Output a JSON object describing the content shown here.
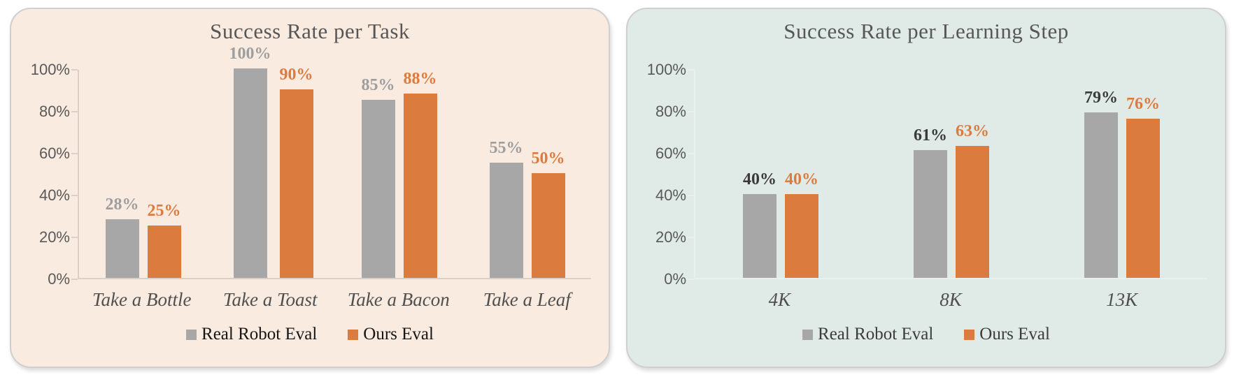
{
  "page": {
    "background": "#FFFFFF"
  },
  "chart_data": [
    {
      "type": "bar",
      "title": "Success Rate per Task",
      "categories": [
        "Take a Bottle",
        "Take a Toast",
        "Take a Bacon",
        "Take a Leaf"
      ],
      "series": [
        {
          "name": "Real Robot Eval",
          "values": [
            28,
            100,
            85,
            55
          ],
          "labels": [
            "28%",
            "100%",
            "85%",
            "55%"
          ],
          "color": "#A7A7A7",
          "label_color": "#9E9E9E"
        },
        {
          "name": "Ours Eval",
          "values": [
            25,
            90,
            88,
            50
          ],
          "labels": [
            "25%",
            "90%",
            "88%",
            "50%"
          ],
          "color": "#DB7B3E",
          "label_color": "#DC7B3E"
        }
      ],
      "xlabel": "",
      "ylabel": "",
      "ylim": [
        0,
        100
      ],
      "y_ticks": [
        {
          "value": 100,
          "label": "100%"
        },
        {
          "value": 80,
          "label": "80%"
        },
        {
          "value": 60,
          "label": "60%"
        },
        {
          "value": 40,
          "label": "40%"
        },
        {
          "value": 20,
          "label": "20%"
        },
        {
          "value": 0,
          "label": "0%"
        }
      ],
      "grid": false,
      "legend_position": "bottom",
      "panel": {
        "background": "#FAEBE0",
        "border": "#CFCFCF",
        "axis_color": "#DCCFC5",
        "title_color": "#575757",
        "tick_label_color": "#595959",
        "category_color": "#4F4F4F",
        "legend_text_color": "#161616"
      }
    },
    {
      "type": "bar",
      "title": "Success Rate per Learning Step",
      "categories": [
        "4K",
        "8K",
        "13K"
      ],
      "series": [
        {
          "name": "Real Robot Eval",
          "values": [
            40,
            61,
            79
          ],
          "labels": [
            "40%",
            "61%",
            "79%"
          ],
          "color": "#A7A7A7",
          "label_color": "#3A3A3A"
        },
        {
          "name": "Ours Eval",
          "values": [
            40,
            63,
            76
          ],
          "labels": [
            "40%",
            "63%",
            "76%"
          ],
          "color": "#DB7B3E",
          "label_color": "#DC7B3E"
        }
      ],
      "xlabel": "",
      "ylabel": "",
      "ylim": [
        0,
        100
      ],
      "y_ticks": [
        {
          "value": 100,
          "label": "100%"
        },
        {
          "value": 80,
          "label": "80%"
        },
        {
          "value": 60,
          "label": "60%"
        },
        {
          "value": 40,
          "label": "40%"
        },
        {
          "value": 20,
          "label": "20%"
        },
        {
          "value": 0,
          "label": "0%"
        }
      ],
      "grid": false,
      "legend_position": "bottom",
      "panel": {
        "background": "#E0EBE7",
        "border": "#CFcfCF",
        "axis_color": "#E9F0ED",
        "title_color": "#575757",
        "tick_label_color": "#595959",
        "category_color": "#4F4F4F",
        "legend_text_color": "#3C3C3C"
      }
    }
  ]
}
